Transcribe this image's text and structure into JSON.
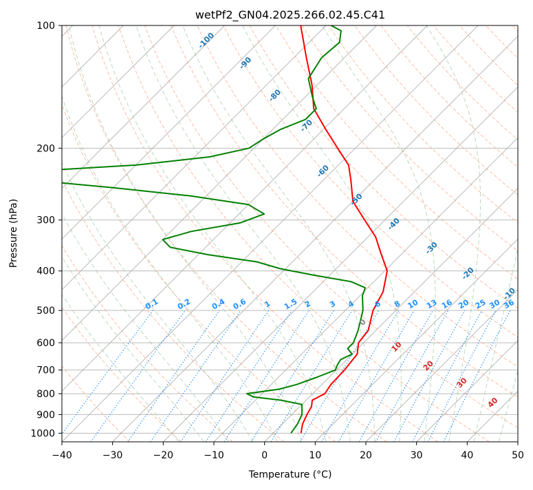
{
  "chart_data": {
    "type": "line",
    "diagram": "skew-T log-p",
    "title": "wetPf2_GN04.2025.266.02.45.C41",
    "xlabel": "Temperature (°C)",
    "ylabel": "Pressure (hPa)",
    "xlim": [
      -40,
      50
    ],
    "ylim": [
      1050,
      100
    ],
    "y_scale": "log",
    "x_ticks": [
      -40,
      -30,
      -20,
      -10,
      0,
      10,
      20,
      30,
      40,
      50
    ],
    "x_tick_labels": [
      "−40",
      "−30",
      "−20",
      "−10",
      "0",
      "10",
      "20",
      "30",
      "40",
      "50"
    ],
    "y_ticks": [
      1000,
      900,
      800,
      700,
      600,
      500,
      400,
      300,
      200,
      100
    ],
    "y_tick_labels": [
      "1000",
      "900",
      "800",
      "700",
      "600",
      "500",
      "400",
      "300",
      "200",
      "100"
    ],
    "grid": true,
    "colors": {
      "temperature": "#ff0000",
      "dewpoint": "#008000",
      "isotherm_grid": "#b0b0b0",
      "isobar_grid": "#b0b0b0",
      "dry_adiabat": "#ffa07a",
      "moist_adiabat": "#8fbc8f",
      "mixing_ratio": "#1e90ff",
      "mixing_ratio_label": "#1e90ff",
      "moist_label": "#1f77b4",
      "dry_label": "#d62728",
      "wet_bulb_zero": "#808080"
    },
    "series": [
      {
        "key": "temperature",
        "points": [
          {
            "p": 1000,
            "t": 5.5
          },
          {
            "p": 950,
            "t": 4.0
          },
          {
            "p": 900,
            "t": 3.0
          },
          {
            "p": 860,
            "t": 2.3
          },
          {
            "p": 830,
            "t": 1.2
          },
          {
            "p": 800,
            "t": 2.4
          },
          {
            "p": 760,
            "t": 1.8
          },
          {
            "p": 700,
            "t": 1.6
          },
          {
            "p": 660,
            "t": 1.2
          },
          {
            "p": 640,
            "t": 1.0
          },
          {
            "p": 600,
            "t": -1.0
          },
          {
            "p": 560,
            "t": -1.5
          },
          {
            "p": 500,
            "t": -4.5
          },
          {
            "p": 450,
            "t": -6.2
          },
          {
            "p": 400,
            "t": -9.5
          },
          {
            "p": 360,
            "t": -14.5
          },
          {
            "p": 330,
            "t": -18.5
          },
          {
            "p": 300,
            "t": -24.0
          },
          {
            "p": 270,
            "t": -30.0
          },
          {
            "p": 240,
            "t": -34.5
          },
          {
            "p": 220,
            "t": -38.0
          },
          {
            "p": 200,
            "t": -43.5
          },
          {
            "p": 180,
            "t": -49.5
          },
          {
            "p": 160,
            "t": -56.0
          },
          {
            "p": 140,
            "t": -61.0
          },
          {
            "p": 120,
            "t": -67.5
          },
          {
            "p": 100,
            "t": -75.0
          }
        ]
      },
      {
        "key": "dewpoint",
        "points": [
          {
            "p": 1000,
            "t": 3.5
          },
          {
            "p": 950,
            "t": 3.0
          },
          {
            "p": 900,
            "t": 2.0
          },
          {
            "p": 850,
            "t": 0.0
          },
          {
            "p": 830,
            "t": -5.0
          },
          {
            "p": 815,
            "t": -11.0
          },
          {
            "p": 800,
            "t": -13.0
          },
          {
            "p": 780,
            "t": -7.5
          },
          {
            "p": 760,
            "t": -5.0
          },
          {
            "p": 730,
            "t": -2.5
          },
          {
            "p": 700,
            "t": -0.2
          },
          {
            "p": 680,
            "t": -0.8
          },
          {
            "p": 660,
            "t": -1.2
          },
          {
            "p": 640,
            "t": 0.0
          },
          {
            "p": 620,
            "t": -2.0
          },
          {
            "p": 600,
            "t": -2.0
          },
          {
            "p": 560,
            "t": -3.5
          },
          {
            "p": 500,
            "t": -6.5
          },
          {
            "p": 460,
            "t": -9.5
          },
          {
            "p": 440,
            "t": -10.5
          },
          {
            "p": 425,
            "t": -14.5
          },
          {
            "p": 410,
            "t": -23.0
          },
          {
            "p": 395,
            "t": -31.0
          },
          {
            "p": 380,
            "t": -37.0
          },
          {
            "p": 365,
            "t": -48.0
          },
          {
            "p": 350,
            "t": -57.0
          },
          {
            "p": 335,
            "t": -60.0
          },
          {
            "p": 320,
            "t": -56.0
          },
          {
            "p": 305,
            "t": -48.0
          },
          {
            "p": 290,
            "t": -45.0
          },
          {
            "p": 275,
            "t": -50.0
          },
          {
            "p": 262,
            "t": -63.0
          },
          {
            "p": 250,
            "t": -80.0
          },
          {
            "p": 238,
            "t": -100.0
          }
        ]
      },
      {
        "key": "dewpoint_upper",
        "points": [
          {
            "p": 228,
            "t": -100.0
          },
          {
            "p": 220,
            "t": -80.0
          },
          {
            "p": 210,
            "t": -67.0
          },
          {
            "p": 200,
            "t": -61.0
          },
          {
            "p": 190,
            "t": -60.0
          },
          {
            "p": 180,
            "t": -58.5
          },
          {
            "p": 170,
            "t": -55.5
          },
          {
            "p": 160,
            "t": -55.5
          },
          {
            "p": 150,
            "t": -58.5
          },
          {
            "p": 135,
            "t": -63.0
          },
          {
            "p": 120,
            "t": -64.5
          },
          {
            "p": 110,
            "t": -64.0
          },
          {
            "p": 103,
            "t": -66.0
          },
          {
            "p": 100,
            "t": -69.0
          }
        ]
      }
    ],
    "mixing_ratio_labels": [
      "0.1",
      "0.2",
      "0.4",
      "0.6",
      "1",
      "1.5",
      "2",
      "3",
      "4",
      "6",
      "8",
      "10",
      "13",
      "16",
      "20",
      "25",
      "30",
      "36"
    ],
    "moist_adiabat_labels": [
      "-100",
      "-90",
      "-80",
      "-70",
      "-60",
      "-50",
      "-40",
      "-30",
      "-20",
      "-10"
    ],
    "dry_adiabat_labels": [
      "10",
      "20",
      "30",
      "40"
    ],
    "wet_bulb_zero_label": "0"
  }
}
